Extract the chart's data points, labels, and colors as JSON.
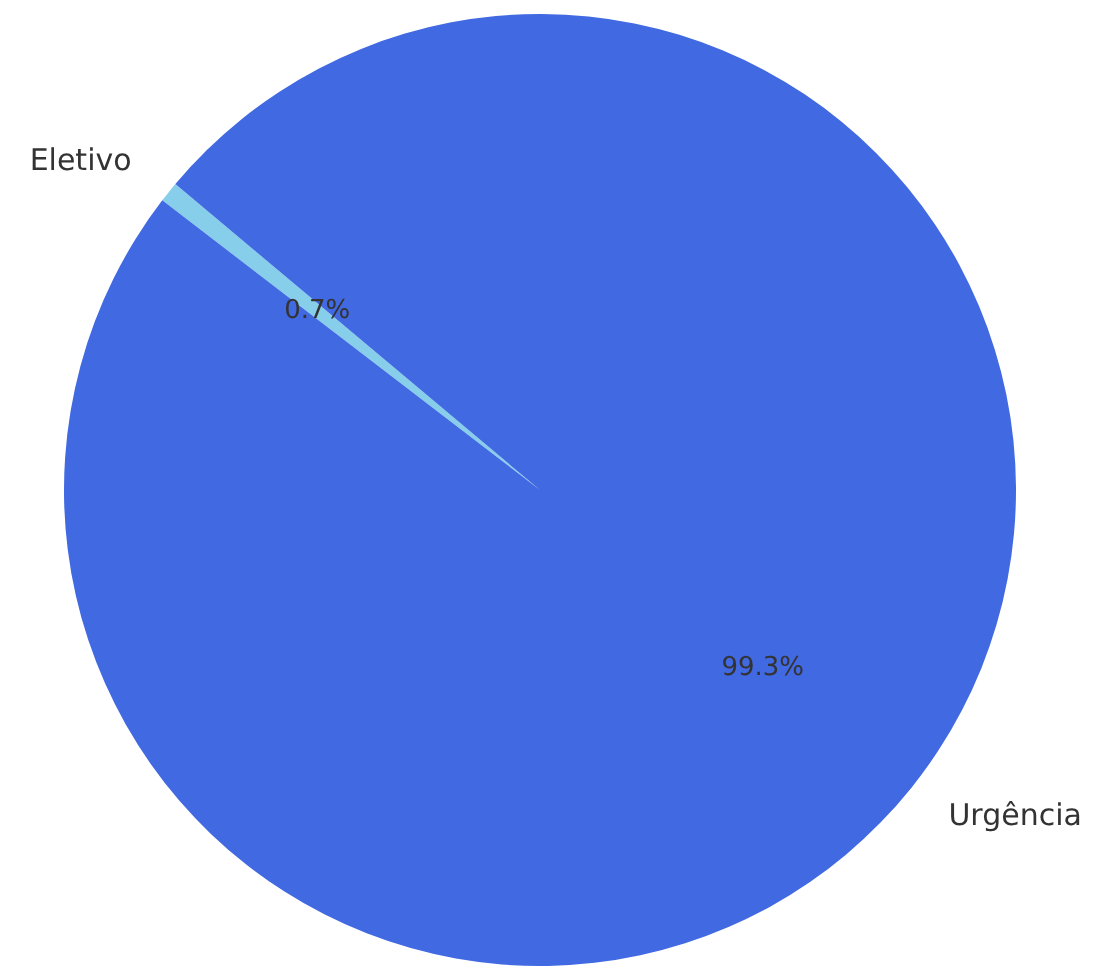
{
  "chart_data": {
    "type": "pie",
    "categories": [
      "Eletivo",
      "Urgência"
    ],
    "values": [
      0.7,
      99.3
    ],
    "colors": [
      "#87ceeb",
      "#4169e1"
    ],
    "value_labels": [
      "0.7%",
      "99.3%"
    ]
  }
}
